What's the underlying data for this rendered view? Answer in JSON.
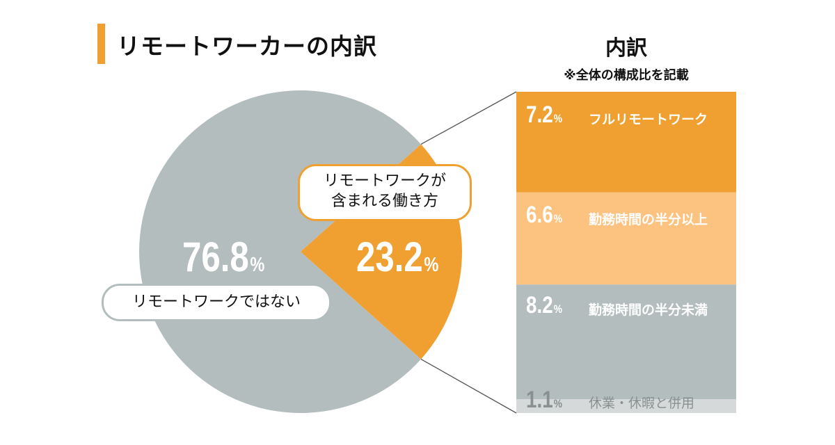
{
  "header": {
    "title": "リモートワーカーの内訳",
    "breakdown_title": "内訳",
    "breakdown_note": "※全体の構成比を記載"
  },
  "colors": {
    "accent": "#f0a030",
    "gray": "#b3bdbd",
    "light_orange": "#fcc27f",
    "light_gray": "#d5d9d9",
    "connector": "#555555"
  },
  "chart_data": [
    {
      "type": "pie",
      "title": "",
      "unit": "%",
      "slices": [
        {
          "label": "リモートワークではない",
          "value": 76.8,
          "color": "#b3bdbd"
        },
        {
          "label": "リモートワークが含まれる働き方",
          "label_lines": [
            "リモートワークが",
            "含まれる働き方"
          ],
          "value": 23.2,
          "color": "#f0a030"
        }
      ]
    },
    {
      "type": "bar",
      "orientation": "vertical-stacked",
      "title": "内訳",
      "note": "※全体の構成比を記載",
      "unit": "%",
      "total": 23.2,
      "segments": [
        {
          "label": "フルリモートワーク",
          "value": 7.2,
          "color": "#f0a030"
        },
        {
          "label": "勤務時間の半分以上",
          "value": 6.6,
          "color": "#fcc27f"
        },
        {
          "label": "勤務時間の半分未満",
          "value": 8.2,
          "color": "#b3bdbd"
        },
        {
          "label": "休業・休暇と併用",
          "value": 1.1,
          "color": "#d5d9d9",
          "text_color": "#8a9090"
        }
      ]
    }
  ]
}
